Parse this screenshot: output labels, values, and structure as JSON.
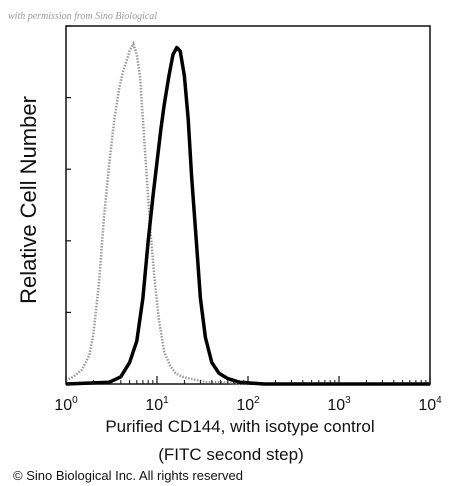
{
  "watermark": "with permission from Sino Biological",
  "copyright": "© Sino Biological Inc. All rights reserved",
  "chart_data": {
    "type": "line",
    "xlabel_lines": [
      "Purified CD144, with isotype control",
      "(FITC second step)"
    ],
    "ylabel": "Relative Cell Number",
    "x_scale": "log",
    "xlim": [
      1,
      10000
    ],
    "ylim": [
      0,
      100
    ],
    "x_ticks": [
      {
        "base": "10",
        "exp": "0",
        "value": 1
      },
      {
        "base": "10",
        "exp": "1",
        "value": 10
      },
      {
        "base": "10",
        "exp": "2",
        "value": 100
      },
      {
        "base": "10",
        "exp": "3",
        "value": 1000
      },
      {
        "base": "10",
        "exp": "4",
        "value": 10000
      }
    ],
    "grid": false,
    "legend": "none",
    "series": [
      {
        "role": "isotype control",
        "style": "dotted",
        "color": "#999999",
        "x": [
          1.0,
          1.2,
          1.5,
          1.8,
          2.0,
          2.3,
          2.6,
          3.0,
          3.4,
          3.8,
          4.2,
          4.6,
          5.0,
          5.5,
          6.0,
          6.5,
          7.0,
          7.7,
          8.5,
          9.5,
          10.5,
          12.0,
          14.0,
          16.0,
          19.0,
          23.0,
          28.0,
          35.0,
          50.0,
          100.0
        ],
        "y": [
          1,
          2,
          4,
          8,
          14,
          28,
          46,
          62,
          74,
          82,
          87,
          90,
          93,
          95,
          92,
          86,
          74,
          58,
          42,
          28,
          18,
          9,
          5,
          3,
          2,
          1.5,
          1,
          0.5,
          0.5,
          0
        ]
      },
      {
        "role": "CD144",
        "style": "solid",
        "color": "#000000",
        "x": [
          1.0,
          3.0,
          4.0,
          5.0,
          6.0,
          7.0,
          8.0,
          9.0,
          10.0,
          11.0,
          12.0,
          13.5,
          15.0,
          16.5,
          18.0,
          20.0,
          22.0,
          24.0,
          27.0,
          30.0,
          34.0,
          40.0,
          48.0,
          60.0,
          80.0,
          150.0,
          10000.0
        ],
        "y": [
          0,
          0.5,
          2,
          6,
          12,
          24,
          40,
          52,
          62,
          71,
          78,
          86,
          92,
          94,
          93,
          86,
          74,
          58,
          40,
          24,
          13,
          6,
          3,
          1.5,
          0.5,
          0,
          0
        ]
      }
    ]
  }
}
